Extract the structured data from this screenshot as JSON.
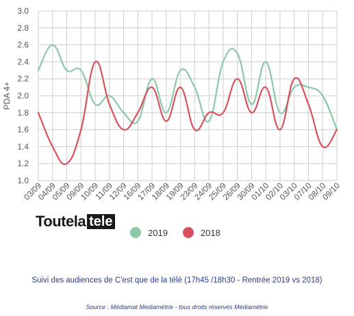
{
  "brand": {
    "logo_text_1": "Toutela",
    "logo_text_2": "tele"
  },
  "caption": "Suivi des audiences de C'est que de la télé (17h45 /18h30 - Rentrée 2019 vs 2018)",
  "source": "Source : Médiamat Médiamétrie - tous droits réservés Médiamétrie",
  "colors": {
    "s2019": "#8cc7a8",
    "s2018": "#d9505a",
    "grid": "#cccccc",
    "text": "#555555"
  },
  "chart_data": {
    "type": "line",
    "ylabel": "PDA 4+",
    "ylim": [
      1.0,
      3.0
    ],
    "yticks": [
      "3.0",
      "2.8",
      "2.6",
      "2.4",
      "2.2",
      "2.0",
      "1.8",
      "1.6",
      "1.4",
      "1.2",
      "1.0"
    ],
    "grid": true,
    "legend_position": "bottom",
    "categories": [
      "03/09",
      "04/09",
      "05/09",
      "09/09",
      "10/09",
      "11/09",
      "12/09",
      "16/09",
      "17/09",
      "18/09",
      "19/09",
      "23/09",
      "24/09",
      "25/09",
      "26/09",
      "30/09",
      "01/10",
      "02/10",
      "03/10",
      "07/10",
      "08/10",
      "09/10"
    ],
    "series": [
      {
        "name": "2019",
        "color": "#8cc7a8",
        "values": [
          2.3,
          2.6,
          2.3,
          2.3,
          1.9,
          2.0,
          1.8,
          1.7,
          2.2,
          1.8,
          2.3,
          2.1,
          1.7,
          2.4,
          2.5,
          1.9,
          2.4,
          1.8,
          2.1,
          2.1,
          2.0,
          1.6
        ]
      },
      {
        "name": "2018",
        "color": "#d9505a",
        "values": [
          1.8,
          1.4,
          1.2,
          1.6,
          2.4,
          1.9,
          1.6,
          1.8,
          2.1,
          1.7,
          2.1,
          1.6,
          1.8,
          1.8,
          2.2,
          1.8,
          2.1,
          1.6,
          2.2,
          1.9,
          1.4,
          1.6
        ]
      }
    ]
  }
}
